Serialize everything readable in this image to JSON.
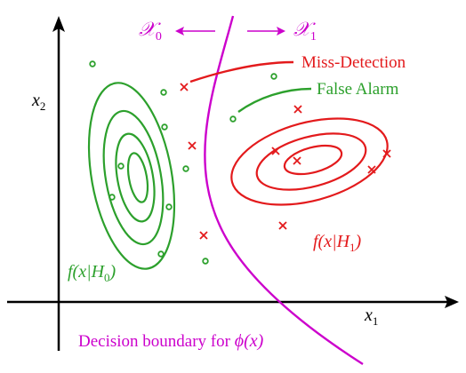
{
  "colors": {
    "axes": "#000000",
    "class0": "#2ca02c",
    "class1": "#e31a1c",
    "boundary": "#cc00cc",
    "annotation_miss": "#e31a1c",
    "annotation_false": "#2ca02c"
  },
  "axes": {
    "x_label": "x",
    "x_sub": "1",
    "y_label": "x",
    "y_sub": "2"
  },
  "regions": {
    "left_label": "𝒳",
    "left_sub": "0",
    "right_label": "𝒳",
    "right_sub": "1",
    "left_arrow": "←",
    "right_arrow": "→"
  },
  "annotations": {
    "miss_detection": "Miss-Detection",
    "false_alarm": "False Alarm"
  },
  "densities": {
    "h0": "f(x|H",
    "h0_sub": "0",
    "h0_close": ")",
    "h1": "f(x|H",
    "h1_sub": "1",
    "h1_close": ")"
  },
  "boundary": {
    "caption_prefix": "Decision boundary for ",
    "caption_func": "ϕ(x)"
  }
}
